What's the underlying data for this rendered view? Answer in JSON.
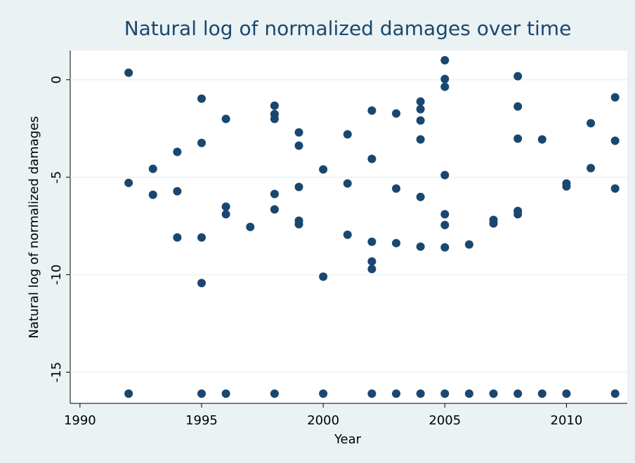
{
  "chart_data": {
    "type": "scatter",
    "title": "Natural log of normalized damages over time",
    "x_label": "Year",
    "y_label": "Natural log of normalized damages",
    "xlim": [
      1989.6,
      2012.5
    ],
    "ylim": [
      -16.6,
      1.5
    ],
    "xticks": [
      1990,
      1995,
      2000,
      2005,
      2010
    ],
    "yticks": [
      0,
      -5,
      -10,
      -15
    ],
    "grid": true,
    "series": [
      {
        "color": "#1a476f",
        "x": [
          1992,
          1992,
          1992,
          1993,
          1993,
          1994,
          1994,
          1994,
          1995,
          1995,
          1995,
          1995,
          1995,
          1996,
          1996,
          1996,
          1996,
          1997,
          1998,
          1998,
          1998,
          1998,
          1998,
          1998,
          1999,
          1999,
          1999,
          1999,
          1999,
          2000,
          2000,
          2000,
          2001,
          2001,
          2001,
          2002,
          2002,
          2002,
          2002,
          2002,
          2002,
          2003,
          2003,
          2003,
          2003,
          2004,
          2004,
          2004,
          2004,
          2004,
          2004,
          2004,
          2005,
          2005,
          2005,
          2005,
          2005,
          2005,
          2005,
          2005,
          2006,
          2006,
          2007,
          2007,
          2007,
          2008,
          2008,
          2008,
          2008,
          2008,
          2008,
          2009,
          2009,
          2010,
          2010,
          2010,
          2011,
          2011,
          2012,
          2012,
          2012,
          2012
        ],
        "values": [
          0.36,
          -5.29,
          -16.1,
          -4.57,
          -5.9,
          -3.7,
          -5.72,
          -8.09,
          -0.97,
          -3.24,
          -8.09,
          -10.43,
          -16.1,
          -2.01,
          -6.51,
          -6.9,
          -16.1,
          -7.55,
          -1.33,
          -1.76,
          -2.01,
          -5.86,
          -6.65,
          -16.1,
          -2.7,
          -3.38,
          -5.5,
          -7.23,
          -7.41,
          -4.6,
          -10.1,
          -16.1,
          -2.8,
          -5.32,
          -7.95,
          -1.58,
          -4.06,
          -8.31,
          -9.32,
          -9.71,
          -16.1,
          -1.73,
          -5.58,
          -8.38,
          -16.1,
          -1.12,
          -1.51,
          -2.09,
          -3.06,
          -6.01,
          -8.56,
          -16.1,
          1.0,
          0.04,
          -0.36,
          -4.89,
          -6.9,
          -7.45,
          -8.6,
          -16.1,
          -8.45,
          -16.1,
          -7.19,
          -7.37,
          -16.1,
          0.18,
          -1.37,
          -3.02,
          -6.73,
          -6.9,
          -16.1,
          -3.06,
          -16.1,
          -5.32,
          -5.47,
          -16.1,
          -2.23,
          -4.53,
          -0.9,
          -3.13,
          -5.58,
          -16.1
        ]
      }
    ]
  }
}
